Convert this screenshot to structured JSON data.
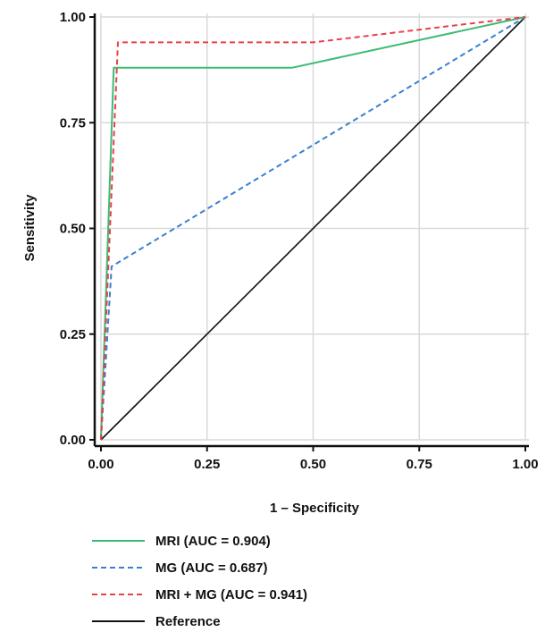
{
  "chart_data": {
    "type": "line",
    "title": "",
    "xlabel": "1 – Specificity",
    "ylabel": "Sensitivity",
    "xlim": [
      0,
      1
    ],
    "ylim": [
      0,
      1
    ],
    "x_ticks": [
      "0.00",
      "0.25",
      "0.50",
      "0.75",
      "1.00"
    ],
    "y_ticks": [
      "0.00",
      "0.25",
      "0.50",
      "0.75",
      "1.00"
    ],
    "grid": true,
    "legend_position": "bottom",
    "series": [
      {
        "name": "MRI (AUC = 0.904)",
        "color": "#3dbb74",
        "dash": "solid",
        "x": [
          0,
          0.03,
          0.45,
          1
        ],
        "y": [
          0,
          0.88,
          0.88,
          1
        ]
      },
      {
        "name": "MG (AUC = 0.687)",
        "color": "#3a7fd0",
        "dash": "dashed",
        "x": [
          0,
          0.025,
          1
        ],
        "y": [
          0,
          0.41,
          1
        ]
      },
      {
        "name": "MRI + MG (AUC = 0.941)",
        "color": "#e8404a",
        "dash": "dashed",
        "x": [
          0,
          0.04,
          0.5,
          1
        ],
        "y": [
          0,
          0.94,
          0.94,
          1
        ]
      },
      {
        "name": "Reference",
        "color": "#111111",
        "dash": "solid",
        "x": [
          0,
          1
        ],
        "y": [
          0,
          1
        ]
      }
    ]
  }
}
